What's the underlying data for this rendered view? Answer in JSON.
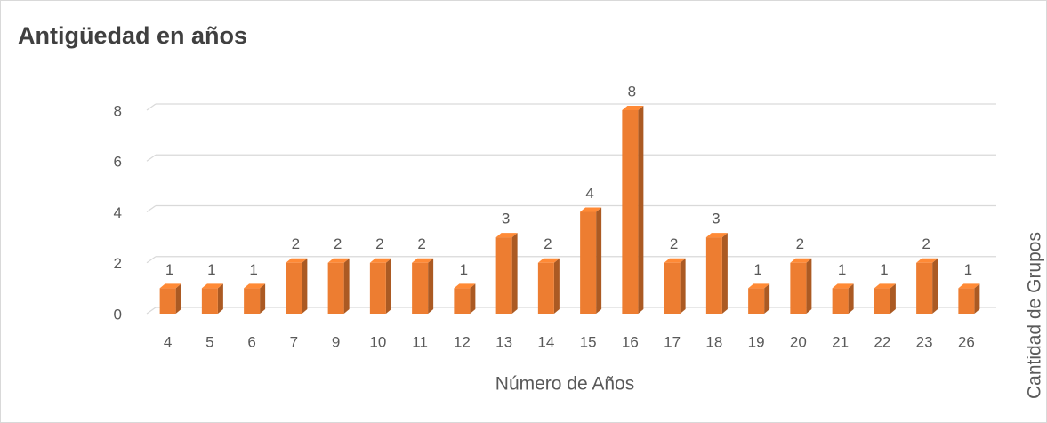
{
  "chart_data": {
    "type": "bar3d",
    "title": "Antigüedad en años",
    "x_label": "Número de Años",
    "y_label": "Cantidad de Grupos",
    "categories": [
      "4",
      "5",
      "6",
      "7",
      "9",
      "10",
      "11",
      "12",
      "13",
      "14",
      "15",
      "16",
      "17",
      "18",
      "19",
      "20",
      "21",
      "22",
      "23",
      "26"
    ],
    "values": [
      1,
      1,
      1,
      2,
      2,
      2,
      2,
      1,
      3,
      2,
      4,
      8,
      2,
      3,
      1,
      2,
      1,
      1,
      2,
      1
    ],
    "color": "#ed7d31",
    "ylim": [
      0,
      8
    ],
    "yticks": [
      0,
      2,
      4,
      6,
      8
    ],
    "grid": true
  }
}
